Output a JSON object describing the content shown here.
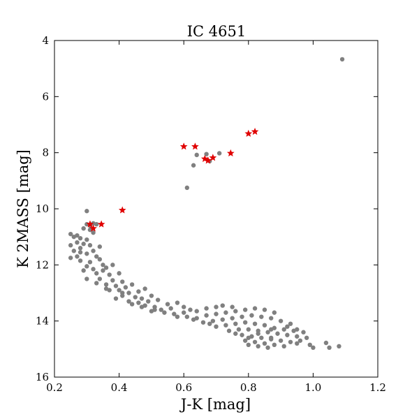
{
  "chart_data": {
    "type": "scatter",
    "title": "IC 4651",
    "xlabel": "J-K [mag]",
    "ylabel": "K 2MASS [mag]",
    "xlim": [
      0.2,
      1.2
    ],
    "ylim": [
      16,
      4
    ],
    "y_inverted": true,
    "grid": false,
    "xticks": [
      0.2,
      0.4,
      0.6,
      0.8,
      1.0,
      1.2
    ],
    "xtick_labels": [
      "0.2",
      "0.4",
      "0.6",
      "0.8",
      "1.0",
      "1.2"
    ],
    "yticks": [
      4,
      6,
      8,
      10,
      12,
      14,
      16
    ],
    "ytick_labels": [
      "4",
      "6",
      "8",
      "10",
      "12",
      "14",
      "16"
    ],
    "series": [
      {
        "marker": "circle",
        "color": "#808080",
        "points": [
          [
            1.09,
            4.67
          ],
          [
            0.61,
            9.25
          ],
          [
            0.63,
            8.45
          ],
          [
            0.64,
            8.08
          ],
          [
            0.67,
            8.05
          ],
          [
            0.71,
            8.02
          ],
          [
            0.68,
            8.3
          ],
          [
            0.3,
            10.08
          ],
          [
            0.3,
            10.55
          ],
          [
            0.31,
            10.6
          ],
          [
            0.32,
            10.52
          ],
          [
            0.33,
            10.55
          ],
          [
            0.29,
            10.7
          ],
          [
            0.31,
            10.75
          ],
          [
            0.25,
            10.9
          ],
          [
            0.26,
            11.0
          ],
          [
            0.28,
            11.05
          ],
          [
            0.3,
            11.1
          ],
          [
            0.27,
            11.2
          ],
          [
            0.29,
            11.25
          ],
          [
            0.31,
            11.3
          ],
          [
            0.25,
            11.3
          ],
          [
            0.26,
            11.5
          ],
          [
            0.28,
            11.4
          ],
          [
            0.3,
            11.6
          ],
          [
            0.32,
            11.5
          ],
          [
            0.33,
            11.7
          ],
          [
            0.27,
            11.7
          ],
          [
            0.25,
            11.75
          ],
          [
            0.28,
            11.85
          ],
          [
            0.31,
            11.9
          ],
          [
            0.34,
            11.8
          ],
          [
            0.35,
            12.0
          ],
          [
            0.3,
            12.05
          ],
          [
            0.32,
            12.15
          ],
          [
            0.36,
            12.1
          ],
          [
            0.38,
            12.0
          ],
          [
            0.29,
            12.2
          ],
          [
            0.33,
            12.3
          ],
          [
            0.37,
            12.35
          ],
          [
            0.4,
            12.3
          ],
          [
            0.34,
            12.5
          ],
          [
            0.3,
            12.5
          ],
          [
            0.38,
            12.55
          ],
          [
            0.41,
            12.6
          ],
          [
            0.36,
            12.7
          ],
          [
            0.39,
            12.75
          ],
          [
            0.42,
            12.8
          ],
          [
            0.44,
            12.7
          ],
          [
            0.37,
            12.9
          ],
          [
            0.4,
            12.9
          ],
          [
            0.43,
            13.0
          ],
          [
            0.46,
            12.95
          ],
          [
            0.48,
            12.85
          ],
          [
            0.41,
            13.1
          ],
          [
            0.45,
            13.15
          ],
          [
            0.39,
            13.2
          ],
          [
            0.47,
            13.2
          ],
          [
            0.5,
            13.1
          ],
          [
            0.43,
            13.3
          ],
          [
            0.46,
            13.35
          ],
          [
            0.49,
            13.3
          ],
          [
            0.52,
            13.25
          ],
          [
            0.48,
            13.45
          ],
          [
            0.51,
            13.5
          ],
          [
            0.55,
            13.4
          ],
          [
            0.58,
            13.35
          ],
          [
            0.5,
            13.65
          ],
          [
            0.53,
            13.6
          ],
          [
            0.56,
            13.55
          ],
          [
            0.6,
            13.5
          ],
          [
            0.62,
            13.6
          ],
          [
            0.57,
            13.75
          ],
          [
            0.6,
            13.7
          ],
          [
            0.64,
            13.65
          ],
          [
            0.67,
            13.55
          ],
          [
            0.7,
            13.5
          ],
          [
            0.72,
            13.45
          ],
          [
            0.75,
            13.5
          ],
          [
            0.61,
            13.85
          ],
          [
            0.64,
            13.9
          ],
          [
            0.67,
            13.8
          ],
          [
            0.7,
            13.75
          ],
          [
            0.73,
            13.7
          ],
          [
            0.76,
            13.65
          ],
          [
            0.79,
            13.6
          ],
          [
            0.82,
            13.55
          ],
          [
            0.85,
            13.6
          ],
          [
            0.88,
            13.7
          ],
          [
            0.66,
            14.05
          ],
          [
            0.69,
            14.0
          ],
          [
            0.72,
            13.95
          ],
          [
            0.75,
            13.9
          ],
          [
            0.78,
            13.85
          ],
          [
            0.81,
            13.8
          ],
          [
            0.84,
            13.85
          ],
          [
            0.87,
            13.9
          ],
          [
            0.9,
            14.0
          ],
          [
            0.93,
            14.1
          ],
          [
            0.7,
            14.2
          ],
          [
            0.73,
            14.15
          ],
          [
            0.76,
            14.1
          ],
          [
            0.79,
            14.05
          ],
          [
            0.82,
            14.1
          ],
          [
            0.85,
            14.15
          ],
          [
            0.88,
            14.25
          ],
          [
            0.91,
            14.3
          ],
          [
            0.94,
            14.35
          ],
          [
            0.97,
            14.4
          ],
          [
            0.74,
            14.35
          ],
          [
            0.77,
            14.3
          ],
          [
            0.8,
            14.3
          ],
          [
            0.83,
            14.35
          ],
          [
            0.86,
            14.4
          ],
          [
            0.89,
            14.45
          ],
          [
            0.92,
            14.5
          ],
          [
            0.95,
            14.55
          ],
          [
            0.98,
            14.6
          ],
          [
            0.78,
            14.5
          ],
          [
            0.81,
            14.55
          ],
          [
            0.84,
            14.6
          ],
          [
            0.87,
            14.65
          ],
          [
            0.9,
            14.7
          ],
          [
            0.93,
            14.75
          ],
          [
            0.79,
            14.7
          ],
          [
            0.82,
            14.75
          ],
          [
            0.85,
            14.8
          ],
          [
            0.88,
            14.85
          ],
          [
            0.91,
            14.9
          ],
          [
            0.8,
            14.85
          ],
          [
            0.83,
            14.9
          ],
          [
            0.86,
            14.95
          ],
          [
            0.95,
            14.8
          ],
          [
            0.99,
            14.85
          ],
          [
            1.0,
            14.95
          ],
          [
            1.04,
            14.78
          ],
          [
            1.08,
            14.9
          ],
          [
            1.05,
            14.95
          ],
          [
            0.87,
            14.6
          ],
          [
            0.96,
            14.7
          ],
          [
            0.76,
            14.45
          ],
          [
            0.8,
            14.6
          ],
          [
            0.83,
            14.45
          ],
          [
            0.87,
            14.3
          ],
          [
            0.92,
            14.2
          ],
          [
            0.95,
            14.3
          ],
          [
            0.68,
            14.1
          ],
          [
            0.63,
            13.95
          ],
          [
            0.58,
            13.85
          ],
          [
            0.54,
            13.7
          ],
          [
            0.51,
            13.6
          ],
          [
            0.47,
            13.5
          ],
          [
            0.44,
            13.4
          ],
          [
            0.41,
            13.0
          ],
          [
            0.36,
            12.85
          ],
          [
            0.33,
            12.65
          ],
          [
            0.35,
            12.2
          ],
          [
            0.28,
            11.55
          ],
          [
            0.34,
            11.35
          ],
          [
            0.27,
            10.95
          ],
          [
            0.32,
            10.85
          ]
        ]
      },
      {
        "marker": "star",
        "color": "#e00000",
        "points": [
          [
            0.82,
            7.25
          ],
          [
            0.8,
            7.32
          ],
          [
            0.6,
            7.78
          ],
          [
            0.635,
            7.78
          ],
          [
            0.745,
            8.02
          ],
          [
            0.69,
            8.18
          ],
          [
            0.665,
            8.22
          ],
          [
            0.675,
            8.28
          ],
          [
            0.41,
            10.05
          ],
          [
            0.31,
            10.55
          ],
          [
            0.345,
            10.55
          ],
          [
            0.32,
            10.7
          ]
        ]
      }
    ]
  }
}
